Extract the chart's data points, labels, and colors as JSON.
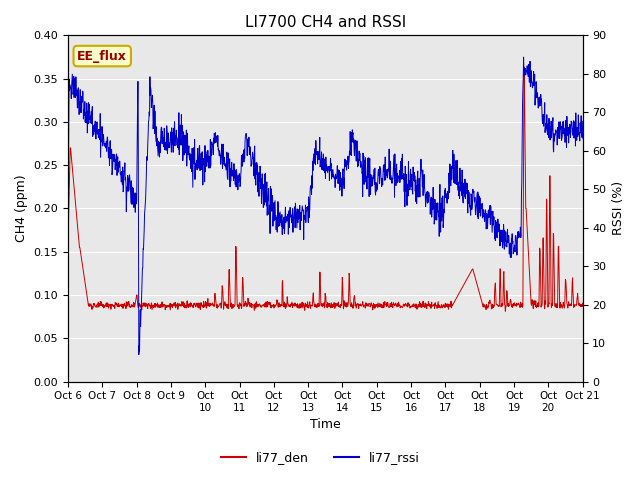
{
  "title": "LI7700 CH4 and RSSI",
  "ylabel_left": "CH4 (ppm)",
  "ylabel_right": "RSSI (%)",
  "xlabel": "Time",
  "ylim_left": [
    0.0,
    0.4
  ],
  "ylim_right": [
    0,
    90
  ],
  "yticks_left": [
    0.0,
    0.05,
    0.1,
    0.15,
    0.2,
    0.25,
    0.3,
    0.35,
    0.4
  ],
  "yticks_right": [
    0,
    10,
    20,
    30,
    40,
    50,
    60,
    70,
    80,
    90
  ],
  "xtick_labels": [
    "Oct 6",
    "Oct 7",
    "Oct 8",
    "Oct 9",
    "Oct 10",
    "Oct 11",
    "Oct 12",
    "Oct 13",
    "Oct 14",
    "Oct 15",
    "Oct 16",
    "Oct 17",
    "Oct 18",
    "Oct 19",
    "Oct 20",
    "Oct 21"
  ],
  "xtick_labels_display": [
    "Oct 6",
    "Oct 7",
    "Oct 8",
    "Oct 9",
    "Oct\n10",
    "Oct\n11",
    "Oct\n12",
    "Oct\n13",
    "Oct\n14",
    "Oct\n15",
    "Oct\n16",
    "Oct\n17",
    "Oct\n18",
    "Oct\n19",
    "Oct\n20",
    "Oct 21"
  ],
  "legend_labels": [
    "li77_den",
    "li77_rssi"
  ],
  "legend_colors": [
    "#cc0000",
    "#0000cc"
  ],
  "annotation_text": "EE_flux",
  "annotation_color": "#990000",
  "annotation_bg": "#ffffcc",
  "annotation_border": "#ccaa00",
  "bg_color": "#e8e8e8",
  "title_fontsize": 11,
  "label_fontsize": 9,
  "tick_fontsize": 8
}
